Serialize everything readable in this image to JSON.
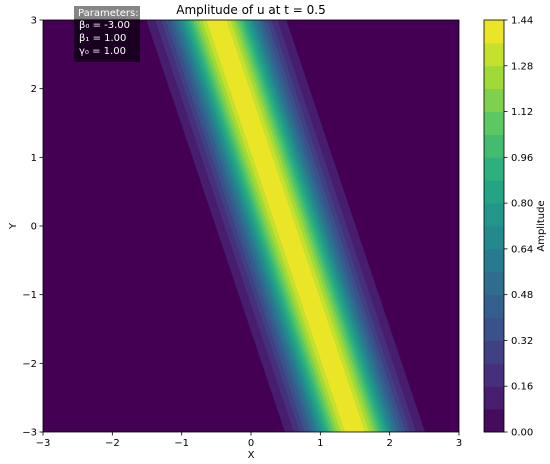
{
  "chart_data": {
    "type": "heatmap",
    "title": "Amplitude of u at t = 0.5",
    "xlabel": "X",
    "ylabel": "Y",
    "xlim": [
      -3,
      3
    ],
    "ylim": [
      -3,
      3
    ],
    "x_ticks": [
      -3,
      -2,
      -1,
      0,
      1,
      2,
      3
    ],
    "y_ticks": [
      -3,
      -2,
      -1,
      0,
      1,
      2,
      3
    ],
    "x_tick_labels": [
      "−3",
      "−2",
      "−1",
      "0",
      "1",
      "2",
      "3"
    ],
    "y_tick_labels": [
      "−3",
      "−2",
      "−1",
      "0",
      "1",
      "2",
      "3"
    ],
    "colormap": "viridis",
    "colorbar": {
      "label": "Amplitude",
      "min": 0.0,
      "max": 1.44,
      "ticks": [
        0.0,
        0.16,
        0.32,
        0.48,
        0.64,
        0.8,
        0.96,
        1.12,
        1.28,
        1.44
      ],
      "tick_labels": [
        "0.00",
        "0.16",
        "0.32",
        "0.48",
        "0.64",
        "0.80",
        "0.96",
        "1.12",
        "1.28",
        "1.44"
      ],
      "levels": 18
    },
    "field": {
      "description": "Diagonal band of maximal amplitude along X = 0.5 - Y/3, decaying across the band",
      "peak": 1.44,
      "ridge_line": {
        "x_at_y_top": -0.5,
        "x_at_y_bottom": 1.5
      },
      "ridge_slope_dx_dy": -0.3333,
      "ridge_x_at_y0": 0.5
    },
    "annotation": {
      "title": "Parameters:",
      "lines": [
        "β₀ = -3.00",
        "β₁ = 1.00",
        "γ₀ = 1.00"
      ]
    }
  }
}
